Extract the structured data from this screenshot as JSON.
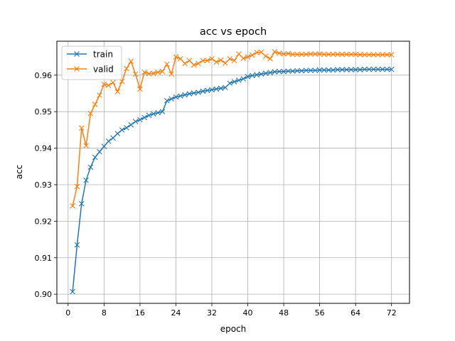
{
  "chart_data": {
    "type": "line",
    "title": "acc vs epoch",
    "xlabel": "epoch",
    "ylabel": "acc",
    "xlim": [
      -2.5,
      76.0
    ],
    "ylim": [
      0.8975,
      0.9693
    ],
    "xticks": [
      0,
      8,
      16,
      24,
      32,
      40,
      48,
      56,
      64,
      72
    ],
    "yticks": [
      0.9,
      0.91,
      0.92,
      0.93,
      0.94,
      0.95,
      0.96
    ],
    "ytick_labels": [
      "0.90",
      "0.91",
      "0.92",
      "0.93",
      "0.94",
      "0.95",
      "0.96"
    ],
    "grid": true,
    "legend_position": "top-left",
    "x": [
      1,
      2,
      3,
      4,
      5,
      6,
      7,
      8,
      9,
      10,
      11,
      12,
      13,
      14,
      15,
      16,
      17,
      18,
      19,
      20,
      21,
      22,
      23,
      24,
      25,
      26,
      27,
      28,
      29,
      30,
      31,
      32,
      33,
      34,
      35,
      36,
      37,
      38,
      39,
      40,
      41,
      42,
      43,
      44,
      45,
      46,
      47,
      48,
      49,
      50,
      51,
      52,
      53,
      54,
      55,
      56,
      57,
      58,
      59,
      60,
      61,
      62,
      63,
      64,
      65,
      66,
      67,
      68,
      69,
      70,
      71,
      72
    ],
    "series": [
      {
        "name": "train",
        "color": "#1f77b4",
        "marker": "x",
        "values": [
          0.9007,
          0.9135,
          0.9248,
          0.9312,
          0.9348,
          0.9375,
          0.939,
          0.9405,
          0.9419,
          0.9428,
          0.944,
          0.945,
          0.9456,
          0.9464,
          0.9473,
          0.9478,
          0.9484,
          0.949,
          0.9494,
          0.9497,
          0.95,
          0.953,
          0.9535,
          0.954,
          0.9543,
          0.9546,
          0.9549,
          0.9551,
          0.9553,
          0.9556,
          0.9558,
          0.956,
          0.9562,
          0.9564,
          0.9566,
          0.9578,
          0.9582,
          0.9586,
          0.959,
          0.9596,
          0.9599,
          0.9601,
          0.9603,
          0.9605,
          0.9607,
          0.9609,
          0.961,
          0.961,
          0.9611,
          0.9611,
          0.9612,
          0.9612,
          0.9613,
          0.9613,
          0.9613,
          0.9614,
          0.9614,
          0.9614,
          0.9614,
          0.9615,
          0.9615,
          0.9615,
          0.9615,
          0.9615,
          0.9615,
          0.9616,
          0.9616,
          0.9616,
          0.9616,
          0.9616,
          0.9616,
          0.9616
        ]
      },
      {
        "name": "valid",
        "color": "#ff7f0e",
        "marker": "x",
        "values": [
          0.9242,
          0.9295,
          0.9455,
          0.9407,
          0.9495,
          0.952,
          0.9545,
          0.9575,
          0.9572,
          0.958,
          0.9555,
          0.9583,
          0.9618,
          0.9638,
          0.9603,
          0.9562,
          0.9608,
          0.9604,
          0.9605,
          0.9608,
          0.961,
          0.963,
          0.9603,
          0.965,
          0.9645,
          0.9632,
          0.964,
          0.9628,
          0.9632,
          0.964,
          0.964,
          0.9645,
          0.9636,
          0.9641,
          0.9633,
          0.9645,
          0.964,
          0.9658,
          0.9646,
          0.965,
          0.9655,
          0.9662,
          0.9663,
          0.9652,
          0.9645,
          0.9664,
          0.966,
          0.9658,
          0.9659,
          0.9657,
          0.9657,
          0.9657,
          0.9657,
          0.9658,
          0.9658,
          0.9658,
          0.9657,
          0.9657,
          0.9657,
          0.9657,
          0.9657,
          0.9657,
          0.9657,
          0.9657,
          0.9656,
          0.9656,
          0.9656,
          0.9656,
          0.9656,
          0.9656,
          0.9656,
          0.9656
        ]
      }
    ]
  }
}
